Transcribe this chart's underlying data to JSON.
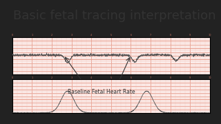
{
  "title": "Basic fetal tracing interpretation",
  "title_fontsize": 13,
  "title_color": "#333333",
  "bg_color": "#ffffff",
  "outer_bg": "#222222",
  "grid_color_major": "#e8a090",
  "grid_color_minor": "#f5d0c8",
  "annotation_text": "Baseline Fetal Heart Rate",
  "annotation_fontsize": 5.5,
  "annotation_color": "#333333"
}
